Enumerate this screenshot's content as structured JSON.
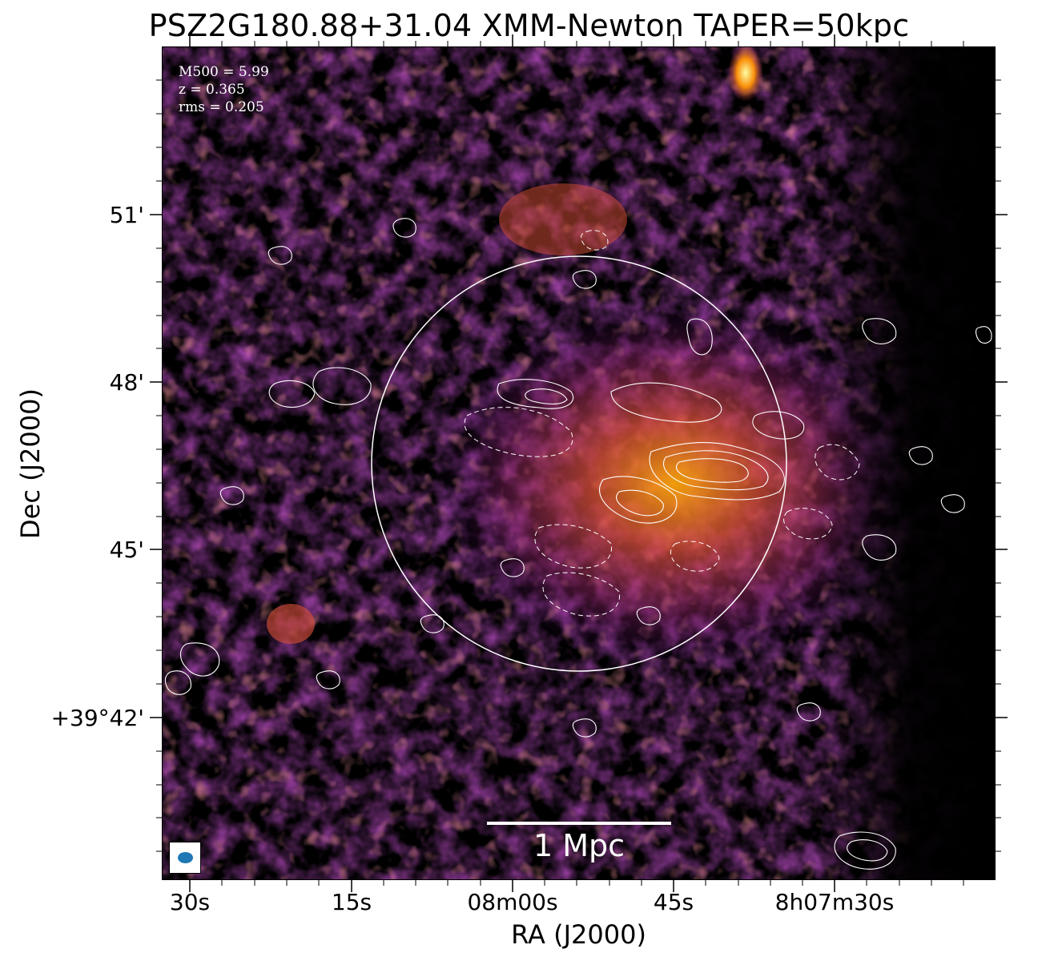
{
  "title": "PSZ2G180.88+31.04 XMM-Newton TAPER=50kpc",
  "info": {
    "mass": "M500 = 5.99",
    "redshift": "z = 0.365",
    "rms": "rms = 0.205"
  },
  "scale_bar": {
    "label": "1 Mpc"
  },
  "axes": {
    "xlabel": "RA (J2000)",
    "ylabel": "Dec (J2000)",
    "x_ticks": [
      "30s",
      "15s",
      "08m00s",
      "45s",
      "8h07m30s"
    ],
    "y_ticks": [
      "51'",
      "48'",
      "45'",
      "+39°42'"
    ]
  },
  "colormap": "inferno",
  "colors": {
    "contour": "#ffffff",
    "circle": "#ffffff",
    "beam": "#1f77b4",
    "background": "#000000"
  },
  "icons": {
    "beam": "beam-ellipse-icon"
  }
}
